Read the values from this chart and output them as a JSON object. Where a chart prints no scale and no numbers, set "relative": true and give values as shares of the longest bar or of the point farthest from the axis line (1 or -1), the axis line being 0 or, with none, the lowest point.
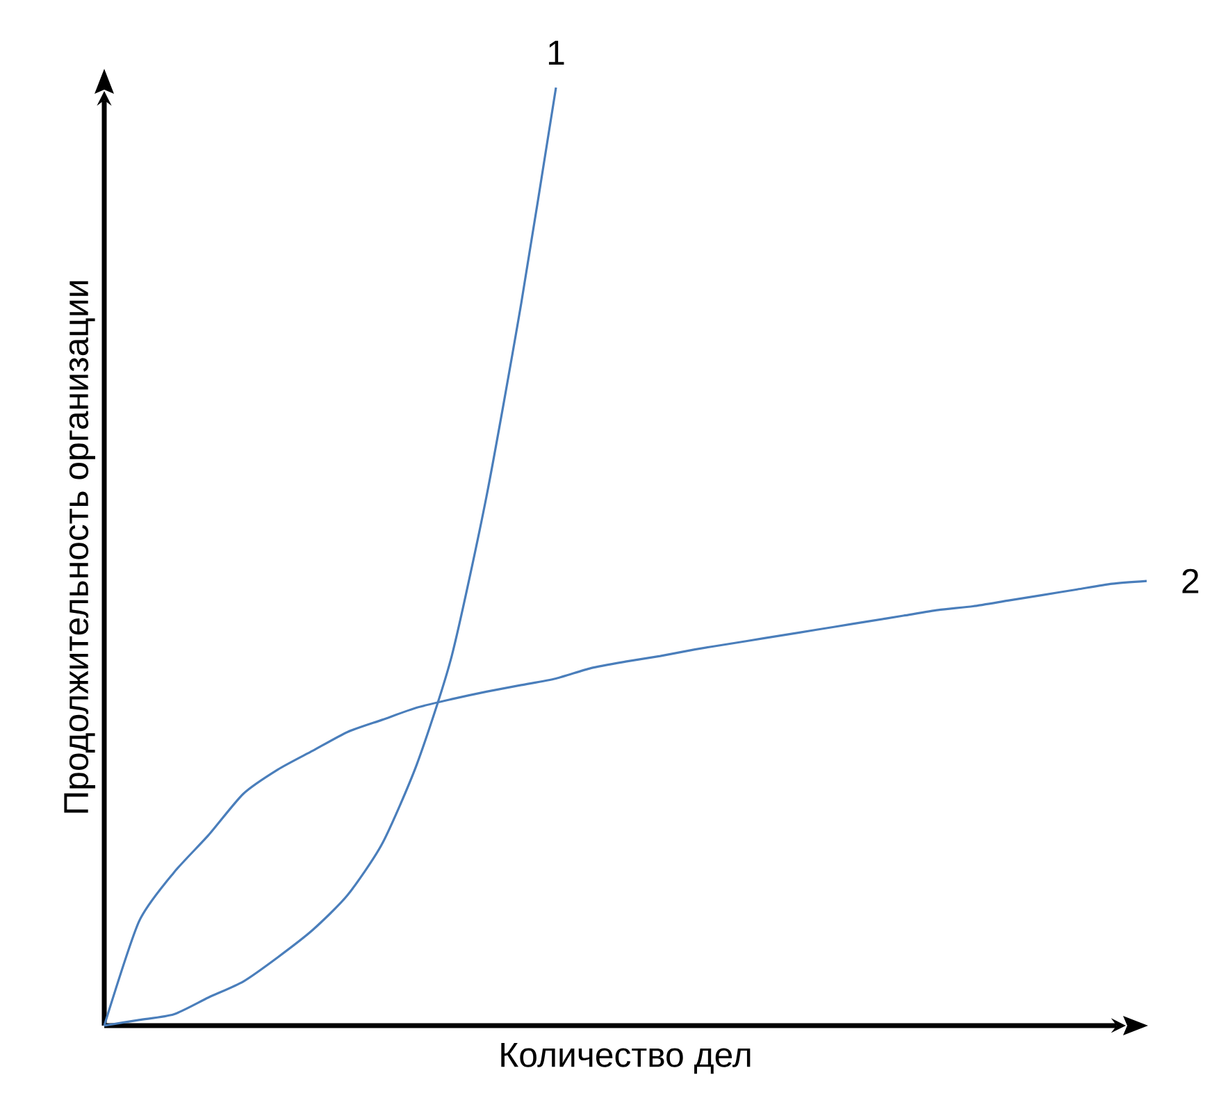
{
  "chart_data": {
    "type": "line",
    "relative": true,
    "xlabel": "Количество дел",
    "ylabel": "Продолжительность организации",
    "legend": false,
    "categories": [
      null,
      null,
      null,
      null,
      null,
      null,
      null,
      null,
      null,
      null,
      null,
      null,
      null,
      null,
      null,
      null,
      null,
      null,
      null,
      null,
      null,
      null,
      null,
      null,
      null,
      null,
      null,
      null,
      null,
      null,
      null
    ],
    "series": [
      {
        "name": "1",
        "color": "#4a7ebb",
        "values": [
          0,
          0.006,
          0.012,
          0.03,
          0.047,
          0.073,
          0.102,
          0.139,
          0.194,
          0.279,
          0.394,
          0.564,
          0.77,
          1.0,
          null,
          null,
          null,
          null,
          null,
          null,
          null,
          null,
          null,
          null,
          null,
          null,
          null,
          null,
          null,
          null,
          null
        ]
      },
      {
        "name": "2",
        "color": "#4a7ebb",
        "values": [
          0,
          0.111,
          0.163,
          0.203,
          0.247,
          0.273,
          0.293,
          0.313,
          0.326,
          0.339,
          0.348,
          0.356,
          0.363,
          0.37,
          0.381,
          0.388,
          0.394,
          0.401,
          0.407,
          0.413,
          0.419,
          0.425,
          0.431,
          0.437,
          0.443,
          0.447,
          0.453,
          0.459,
          0.465,
          0.471,
          0.474
        ]
      }
    ]
  }
}
